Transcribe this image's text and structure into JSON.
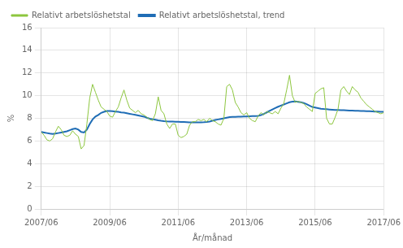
{
  "chart_data": {
    "type": "line",
    "categories": [
      "2007/06",
      null,
      null,
      null,
      null,
      null,
      null,
      null,
      null,
      null,
      null,
      null,
      null,
      null,
      null,
      null,
      null,
      null,
      null,
      null,
      null,
      null,
      null,
      null,
      "2009/06",
      null,
      null,
      null,
      null,
      null,
      null,
      null,
      null,
      null,
      null,
      null,
      null,
      null,
      null,
      null,
      null,
      null,
      null,
      null,
      null,
      null,
      null,
      null,
      "2011/06",
      null,
      null,
      null,
      null,
      null,
      null,
      null,
      null,
      null,
      null,
      null,
      null,
      null,
      null,
      null,
      null,
      null,
      null,
      null,
      null,
      null,
      null,
      null,
      "2013/06",
      null,
      null,
      null,
      null,
      null,
      null,
      null,
      null,
      null,
      null,
      null,
      null,
      null,
      null,
      null,
      null,
      null,
      null,
      null,
      null,
      null,
      null,
      null,
      "2015/06",
      null,
      null,
      null,
      null,
      null,
      null,
      null,
      null,
      null,
      null,
      null,
      null,
      null,
      null,
      null,
      null,
      null,
      null,
      null,
      null,
      null,
      null,
      null,
      "2017/06"
    ],
    "series": [
      {
        "name": "Relativt arbetslöshetstal",
        "color": "#8dc63f",
        "values": [
          6.8,
          6.5,
          6.1,
          6.0,
          6.2,
          6.8,
          7.3,
          7.0,
          6.5,
          6.4,
          6.5,
          6.9,
          6.6,
          6.4,
          5.3,
          5.6,
          7.5,
          9.8,
          11.0,
          10.3,
          9.6,
          9.0,
          8.8,
          8.6,
          8.2,
          8.1,
          8.6,
          9.0,
          9.8,
          10.5,
          9.6,
          8.9,
          8.7,
          8.5,
          8.7,
          8.4,
          8.3,
          8.1,
          7.9,
          7.8,
          8.4,
          9.9,
          8.7,
          8.4,
          7.5,
          7.1,
          7.5,
          7.5,
          6.5,
          6.3,
          6.4,
          6.6,
          7.4,
          7.7,
          7.7,
          7.9,
          7.8,
          7.9,
          7.7,
          8.0,
          7.8,
          7.7,
          7.5,
          7.4,
          8.0,
          10.8,
          11.0,
          10.5,
          9.4,
          9.0,
          8.5,
          8.3,
          8.5,
          8.0,
          7.8,
          7.7,
          8.2,
          8.5,
          8.3,
          8.6,
          8.5,
          8.4,
          8.6,
          8.4,
          8.9,
          9.3,
          10.5,
          11.8,
          10.0,
          9.4,
          9.5,
          9.4,
          9.3,
          9.0,
          8.8,
          8.6,
          10.2,
          10.4,
          10.6,
          10.7,
          8.0,
          7.5,
          7.5,
          8.1,
          8.8,
          10.5,
          10.8,
          10.4,
          10.1,
          10.8,
          10.5,
          10.3,
          9.8,
          9.5,
          9.2,
          9.0,
          8.8,
          8.6,
          8.5,
          8.4,
          8.5
        ]
      },
      {
        "name": "Relativt arbetslöshetstal, trend",
        "color": "#1f6db5",
        "values": [
          6.8,
          6.75,
          6.7,
          6.65,
          6.62,
          6.65,
          6.7,
          6.75,
          6.8,
          6.85,
          6.95,
          7.05,
          7.1,
          7.0,
          6.8,
          6.75,
          7.0,
          7.5,
          7.9,
          8.15,
          8.3,
          8.48,
          8.57,
          8.65,
          8.65,
          8.63,
          8.6,
          8.57,
          8.52,
          8.5,
          8.45,
          8.4,
          8.35,
          8.3,
          8.25,
          8.2,
          8.15,
          8.05,
          7.97,
          7.92,
          7.87,
          7.82,
          7.78,
          7.75,
          7.73,
          7.72,
          7.71,
          7.7,
          7.69,
          7.68,
          7.67,
          7.66,
          7.65,
          7.65,
          7.65,
          7.65,
          7.65,
          7.66,
          7.68,
          7.72,
          7.78,
          7.85,
          7.9,
          7.95,
          8.0,
          8.05,
          8.1,
          8.12,
          8.13,
          8.14,
          8.15,
          8.16,
          8.17,
          8.18,
          8.19,
          8.2,
          8.22,
          8.28,
          8.38,
          8.52,
          8.65,
          8.78,
          8.9,
          9.02,
          9.12,
          9.22,
          9.32,
          9.42,
          9.47,
          9.48,
          9.46,
          9.42,
          9.35,
          9.25,
          9.12,
          9.0,
          8.95,
          8.9,
          8.85,
          8.82,
          8.8,
          8.78,
          8.76,
          8.74,
          8.73,
          8.72,
          8.71,
          8.7,
          8.69,
          8.68,
          8.67,
          8.66,
          8.65,
          8.64,
          8.63,
          8.62,
          8.61,
          8.6,
          8.59,
          8.58,
          8.57
        ]
      }
    ],
    "xlabel": "År/månad",
    "ylabel": "%",
    "ylim": [
      0,
      16
    ],
    "yticks": [
      0,
      2,
      4,
      6,
      8,
      10,
      12,
      14,
      16
    ],
    "grid": true,
    "legend": "top"
  }
}
